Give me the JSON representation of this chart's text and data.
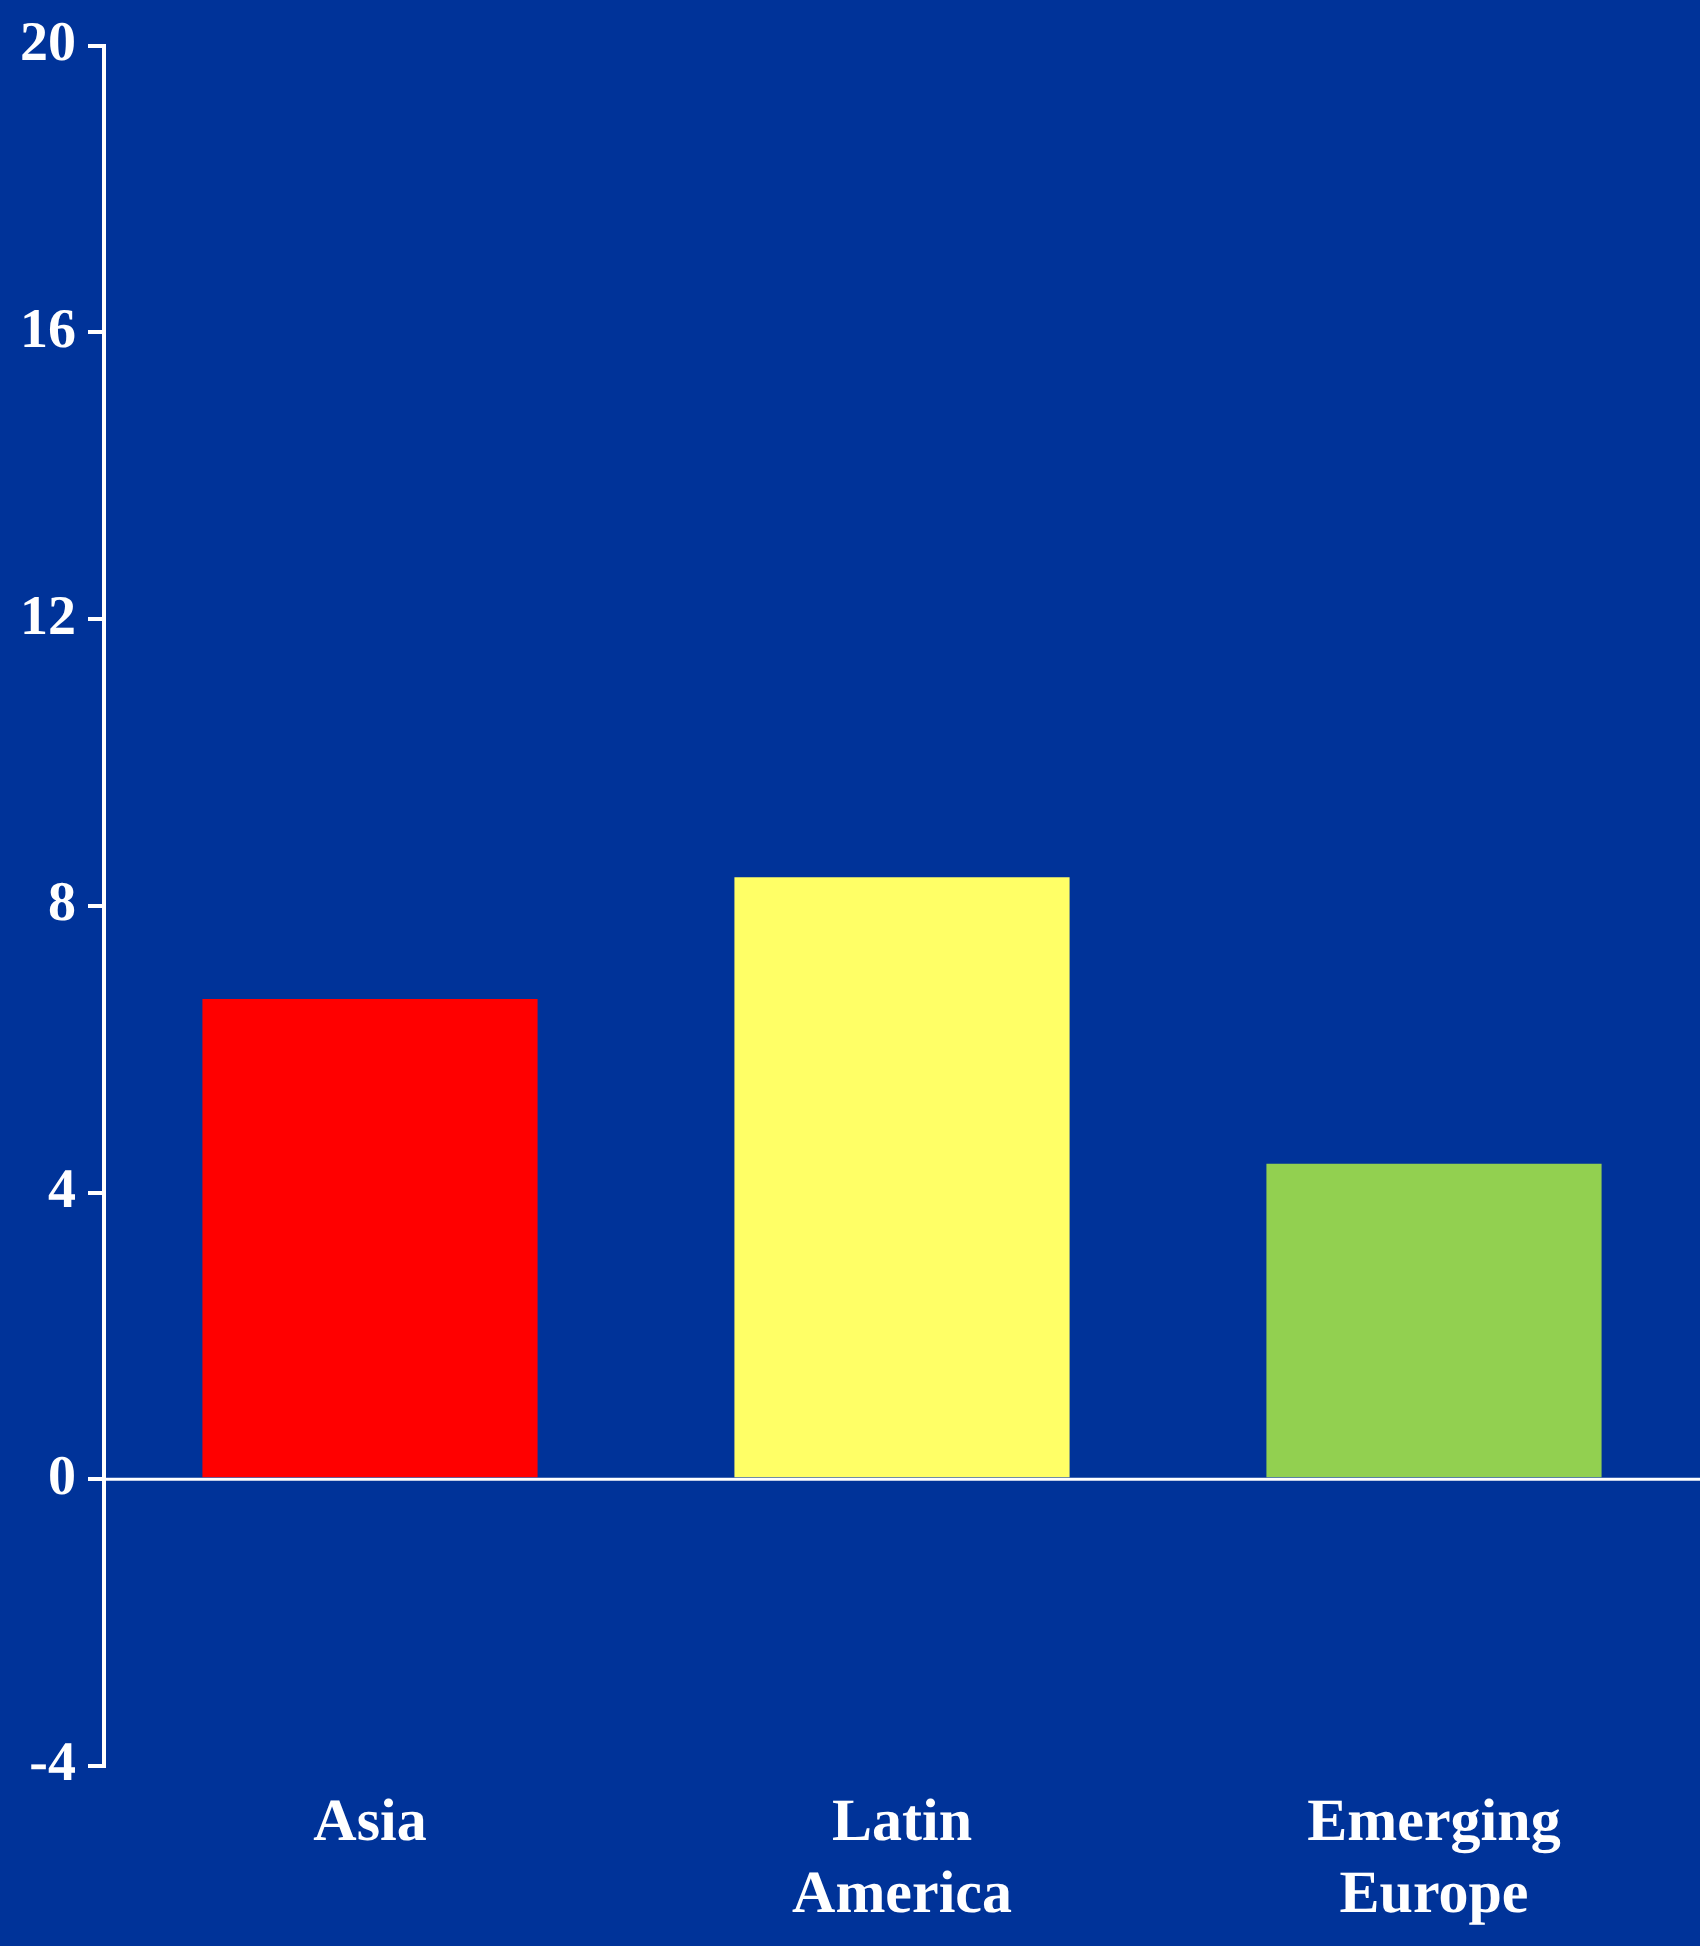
{
  "chart_data": {
    "type": "bar",
    "categories": [
      "Asia",
      "Latin America",
      "Emerging Europe"
    ],
    "values": [
      6.7,
      8.4,
      4.4
    ],
    "colors": [
      "#ff0000",
      "#ffff66",
      "#92d050"
    ],
    "ylim": [
      -4,
      20
    ],
    "yticks": [
      -4,
      0,
      4,
      8,
      12,
      16,
      20
    ],
    "grid": false,
    "legend": false,
    "ref_lines": [
      {
        "axis": "y",
        "value": 0,
        "color": "#ffffff"
      }
    ]
  }
}
